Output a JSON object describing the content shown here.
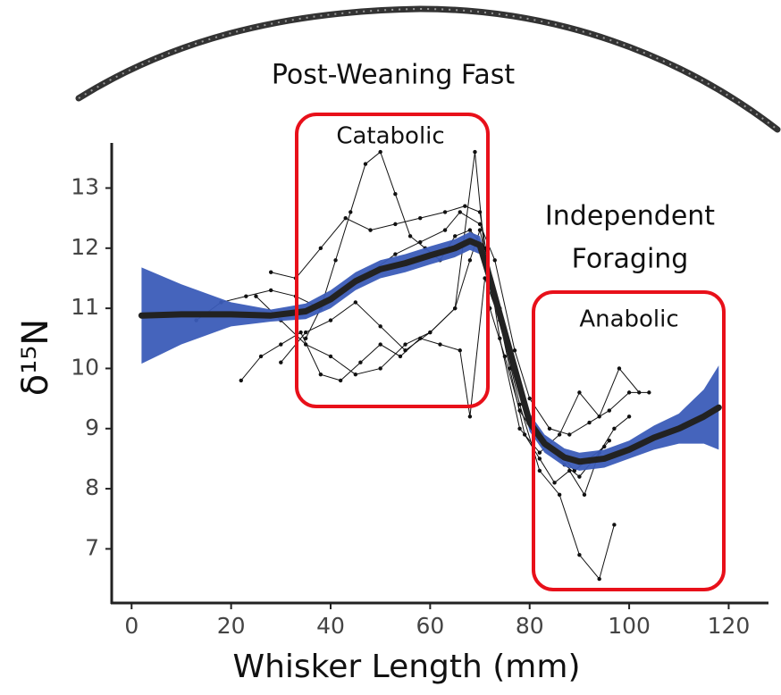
{
  "chart_data": {
    "type": "line",
    "x_label": "Whisker Length (mm)",
    "y_label": "δ¹⁵N",
    "annotations": [
      "Post-Weaning Fast",
      "Catabolic",
      "Independent",
      "Foraging",
      "Anabolic"
    ],
    "xlim": [
      -4,
      128
    ],
    "ylim": [
      6.1,
      13.75
    ],
    "xticks": [
      0,
      20,
      40,
      60,
      80,
      100,
      120
    ],
    "yticks": [
      7,
      8,
      9,
      10,
      11,
      12,
      13
    ],
    "trace_color": "#111111",
    "fit_color": "#222222",
    "band_color": "#3b5cb8",
    "fit": {
      "x": [
        2,
        10,
        20,
        28,
        35,
        40,
        45,
        50,
        55,
        60,
        65,
        68,
        70,
        72,
        75,
        78,
        80,
        83,
        87,
        90,
        95,
        100,
        105,
        110,
        115,
        118
      ],
      "values": [
        10.88,
        10.9,
        10.9,
        10.88,
        10.95,
        11.15,
        11.45,
        11.65,
        11.75,
        11.88,
        12.0,
        12.12,
        12.05,
        11.5,
        10.6,
        9.7,
        9.1,
        8.75,
        8.52,
        8.45,
        8.5,
        8.65,
        8.85,
        9.0,
        9.2,
        9.35
      ],
      "lower": [
        10.08,
        10.4,
        10.7,
        10.78,
        10.82,
        11.0,
        11.3,
        11.5,
        11.6,
        11.73,
        11.85,
        11.97,
        11.9,
        11.35,
        10.45,
        9.55,
        8.95,
        8.6,
        8.37,
        8.3,
        8.35,
        8.5,
        8.65,
        8.75,
        8.75,
        8.65
      ],
      "upper": [
        11.68,
        11.4,
        11.1,
        10.98,
        11.08,
        11.3,
        11.6,
        11.8,
        11.9,
        12.03,
        12.15,
        12.27,
        12.2,
        11.65,
        10.75,
        9.85,
        9.25,
        8.9,
        8.67,
        8.6,
        8.65,
        8.8,
        9.05,
        9.25,
        9.65,
        10.05
      ]
    },
    "traces": [
      {
        "x": [
          35,
          38,
          41,
          44,
          47,
          50,
          53,
          56,
          59,
          62,
          65,
          68,
          71,
          74,
          77,
          80,
          83,
          86,
          89,
          92,
          95
        ],
        "values": [
          10.5,
          11.0,
          11.8,
          12.6,
          13.4,
          13.6,
          12.9,
          12.2,
          12.0,
          11.8,
          12.2,
          12.3,
          12.0,
          11.0,
          10.0,
          9.2,
          8.8,
          8.6,
          8.3,
          8.5,
          8.7
        ]
      },
      {
        "x": [
          25,
          30,
          35,
          40,
          45,
          50,
          55,
          60,
          65,
          68,
          70,
          73,
          76,
          79,
          82,
          85,
          88,
          91,
          94,
          97,
          100
        ],
        "values": [
          11.2,
          10.8,
          10.4,
          10.2,
          9.9,
          10.0,
          10.4,
          10.6,
          11.0,
          11.8,
          12.3,
          11.2,
          10.0,
          8.9,
          8.5,
          8.1,
          8.3,
          7.9,
          8.6,
          9.0,
          9.2
        ]
      },
      {
        "x": [
          13,
          18,
          23,
          28,
          33,
          38,
          43,
          48,
          53,
          58,
          63,
          66,
          70,
          73,
          77,
          80,
          84,
          88,
          92,
          96,
          100,
          104
        ],
        "values": [
          10.8,
          11.1,
          11.2,
          11.3,
          11.2,
          11.0,
          11.3,
          11.6,
          11.9,
          12.1,
          12.3,
          12.6,
          12.4,
          11.8,
          10.3,
          9.5,
          9.0,
          8.9,
          9.1,
          9.3,
          9.6,
          9.6
        ]
      },
      {
        "x": [
          22,
          26,
          30,
          34,
          38,
          42,
          46,
          50,
          54,
          58,
          62,
          66,
          68,
          71,
          74,
          78,
          82,
          86,
          90,
          94,
          97
        ],
        "values": [
          9.8,
          10.2,
          10.4,
          10.6,
          9.9,
          9.8,
          10.1,
          10.4,
          10.2,
          10.5,
          10.4,
          10.3,
          9.2,
          11.5,
          10.8,
          9.4,
          8.3,
          7.9,
          6.9,
          6.5,
          7.4
        ]
      },
      {
        "x": [
          28,
          33,
          38,
          43,
          48,
          53,
          58,
          63,
          67,
          70,
          74,
          78,
          82,
          86,
          90,
          94,
          98,
          102
        ],
        "values": [
          11.6,
          11.5,
          12.0,
          12.5,
          12.3,
          12.4,
          12.5,
          12.6,
          12.7,
          12.6,
          10.5,
          9.0,
          8.6,
          8.9,
          9.6,
          9.2,
          10.0,
          9.6
        ]
      },
      {
        "x": [
          30,
          35,
          40,
          45,
          50,
          55,
          60,
          65,
          69,
          72,
          75,
          78,
          81,
          84,
          87,
          90,
          93,
          96
        ],
        "values": [
          10.1,
          10.6,
          10.8,
          11.1,
          10.7,
          10.3,
          10.6,
          11.0,
          13.6,
          11.0,
          10.2,
          9.3,
          8.9,
          8.7,
          8.4,
          8.2,
          8.5,
          8.8
        ]
      }
    ]
  }
}
